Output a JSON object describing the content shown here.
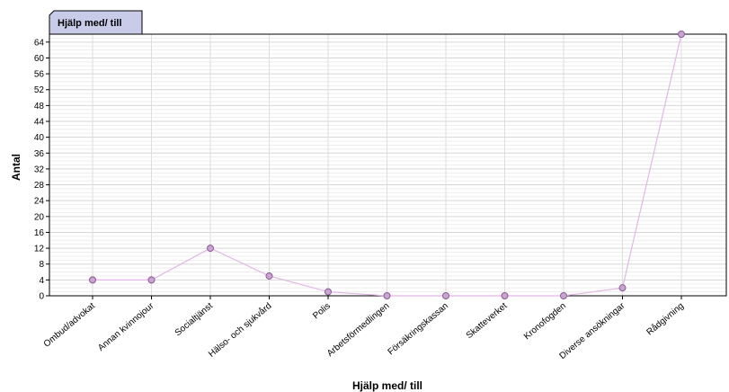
{
  "chart_data": {
    "type": "line",
    "title": "Hjälp med/ till",
    "xlabel": "Hjälp med/ till",
    "ylabel": "Antal",
    "categories": [
      "Ombud/advokat",
      "Annan kvinnojour",
      "Socialtjänst",
      "Hälso- och sjukvård",
      "Polis",
      "Arbetsförmedlingen",
      "Försäkringskassan",
      "Skatteverket",
      "Kronofogden",
      "Diverse ansökningar",
      "Rådgivning"
    ],
    "series": [
      {
        "values": [
          4,
          4,
          12,
          5,
          1,
          0,
          0,
          0,
          0,
          2,
          66
        ]
      }
    ],
    "ylim": [
      0,
      66
    ],
    "yticks": [
      0,
      4,
      8,
      12,
      16,
      20,
      24,
      28,
      32,
      36,
      40,
      44,
      48,
      52,
      56,
      60,
      64
    ],
    "grid": true,
    "colors": {
      "line": "#e2b6e6",
      "marker_fill": "#c9a3d2",
      "marker_stroke": "#8a5a96",
      "tab_fill": "#c8cce8"
    }
  }
}
